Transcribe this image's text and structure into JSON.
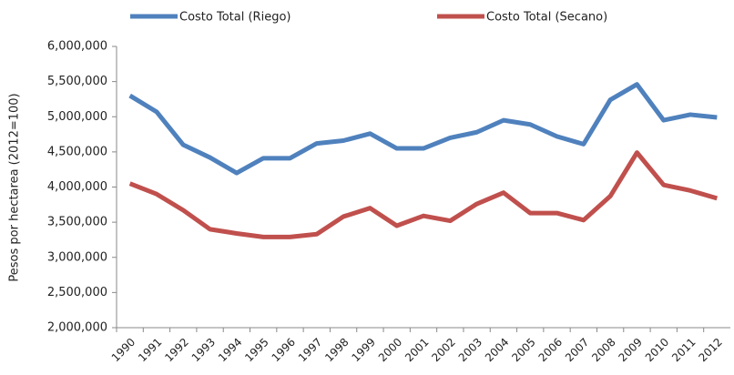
{
  "chart_data": {
    "type": "line",
    "y_label": "Pesos por hectarea (2012=100)",
    "categories": [
      "1990",
      "1991",
      "1992",
      "1993",
      "1994",
      "1995",
      "1996",
      "1997",
      "1998",
      "1999",
      "2000",
      "2001",
      "2002",
      "2003",
      "2004",
      "2005",
      "2006",
      "2007",
      "2008",
      "2009",
      "2010",
      "2011",
      "2012"
    ],
    "series": [
      {
        "name": "Costo Total (Riego)",
        "color": "#4f81bd",
        "values": [
          5300000,
          5070000,
          4600000,
          4420000,
          4200000,
          4410000,
          4410000,
          4620000,
          4660000,
          4760000,
          4550000,
          4550000,
          4700000,
          4780000,
          4950000,
          4890000,
          4720000,
          4610000,
          5240000,
          5460000,
          4950000,
          5030000,
          4990000
        ]
      },
      {
        "name": "Costo Total (Secano)",
        "color": "#c0504d",
        "values": [
          4050000,
          3900000,
          3670000,
          3400000,
          3340000,
          3290000,
          3290000,
          3330000,
          3580000,
          3700000,
          3450000,
          3590000,
          3520000,
          3760000,
          3920000,
          3630000,
          3630000,
          3530000,
          3870000,
          4490000,
          4030000,
          3950000,
          3840000
        ]
      }
    ],
    "ylim": [
      2000000,
      6000000
    ],
    "yticks": [
      {
        "value": 2000000,
        "label": "2,000,000"
      },
      {
        "value": 2500000,
        "label": "2,500,000"
      },
      {
        "value": 3000000,
        "label": "3,000,000"
      },
      {
        "value": 3500000,
        "label": "3,500,000"
      },
      {
        "value": 4000000,
        "label": "4,000,000"
      },
      {
        "value": 4500000,
        "label": "4,500,000"
      },
      {
        "value": 5000000,
        "label": "5,000,000"
      },
      {
        "value": 5500000,
        "label": "5,500,000"
      },
      {
        "value": 6000000,
        "label": "6,000,000"
      }
    ],
    "grid": false,
    "legend": "top"
  }
}
